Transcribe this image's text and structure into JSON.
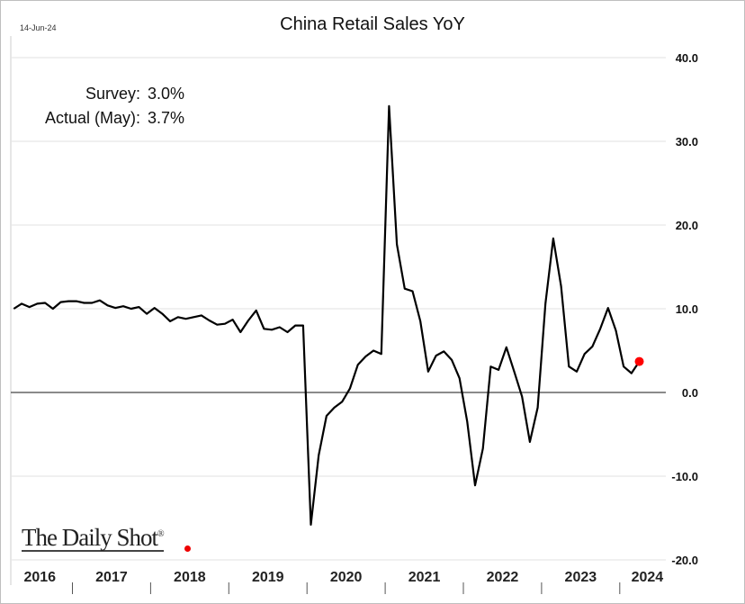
{
  "chart_data": {
    "type": "line",
    "title": "China Retail Sales YoY",
    "date_label": "14-Jun-24",
    "annotations": [
      {
        "label": "Survey:",
        "value": "3.0%"
      },
      {
        "label": "Actual (May):",
        "value": "3.7%"
      }
    ],
    "watermark": "The Daily Shot®",
    "ylim": [
      -20,
      40
    ],
    "yticks": [
      "40.0",
      "30.0",
      "20.0",
      "10.0",
      "0.0",
      "-10.0",
      "-20.0"
    ],
    "ytick_values": [
      40,
      30,
      20,
      10,
      0,
      -10,
      -20
    ],
    "y_axis_side": "right",
    "grid": true,
    "x_categories": [
      "2016",
      "2017",
      "2018",
      "2019",
      "2020",
      "2021",
      "2022",
      "2023",
      "2024"
    ],
    "line_color": "#000000",
    "highlight_color": "#ff0000",
    "series": [
      {
        "x": [
          "2016-05",
          "2016-06",
          "2016-07",
          "2016-08",
          "2016-09",
          "2016-10",
          "2016-11",
          "2016-12",
          "2017-03",
          "2017-04",
          "2017-05",
          "2017-06",
          "2017-07",
          "2017-08",
          "2017-09",
          "2017-10",
          "2017-11",
          "2017-12",
          "2018-03",
          "2018-04",
          "2018-05",
          "2018-06",
          "2018-07",
          "2018-08",
          "2018-09",
          "2018-10",
          "2018-11",
          "2018-12",
          "2019-03",
          "2019-04",
          "2019-05",
          "2019-06",
          "2019-07",
          "2019-08",
          "2019-09",
          "2019-10",
          "2019-11",
          "2019-12",
          "2020-03",
          "2020-04",
          "2020-05",
          "2020-06",
          "2020-07",
          "2020-08",
          "2020-09",
          "2020-10",
          "2020-11",
          "2020-12",
          "2021-03",
          "2021-04",
          "2021-05",
          "2021-06",
          "2021-07",
          "2021-08",
          "2021-09",
          "2021-10",
          "2021-11",
          "2021-12",
          "2022-03",
          "2022-04",
          "2022-05",
          "2022-06",
          "2022-07",
          "2022-08",
          "2022-09",
          "2022-10",
          "2022-11",
          "2022-12",
          "2023-03",
          "2023-04",
          "2023-05",
          "2023-06",
          "2023-07",
          "2023-08",
          "2023-09",
          "2023-10",
          "2023-11",
          "2023-12",
          "2024-03",
          "2024-04",
          "2024-05"
        ],
        "values": [
          10.0,
          10.6,
          10.2,
          10.6,
          10.7,
          10.0,
          10.8,
          10.9,
          10.9,
          10.7,
          10.7,
          11.0,
          10.4,
          10.1,
          10.3,
          10.0,
          10.2,
          9.4,
          10.1,
          9.4,
          8.5,
          9.0,
          8.8,
          9.0,
          9.2,
          8.6,
          8.1,
          8.2,
          8.7,
          7.2,
          8.6,
          9.8,
          7.6,
          7.5,
          7.8,
          7.2,
          8.0,
          8.0,
          -15.8,
          -7.5,
          -2.8,
          -1.8,
          -1.1,
          0.5,
          3.3,
          4.3,
          5.0,
          4.6,
          34.2,
          17.7,
          12.4,
          12.1,
          8.5,
          2.5,
          4.4,
          4.9,
          3.9,
          1.7,
          -3.5,
          -11.1,
          -6.7,
          3.1,
          2.7,
          5.4,
          2.5,
          -0.5,
          -5.9,
          -1.8,
          10.6,
          18.4,
          12.7,
          3.1,
          2.5,
          4.6,
          5.5,
          7.6,
          10.1,
          7.4,
          3.1,
          2.3,
          3.7
        ]
      }
    ]
  }
}
